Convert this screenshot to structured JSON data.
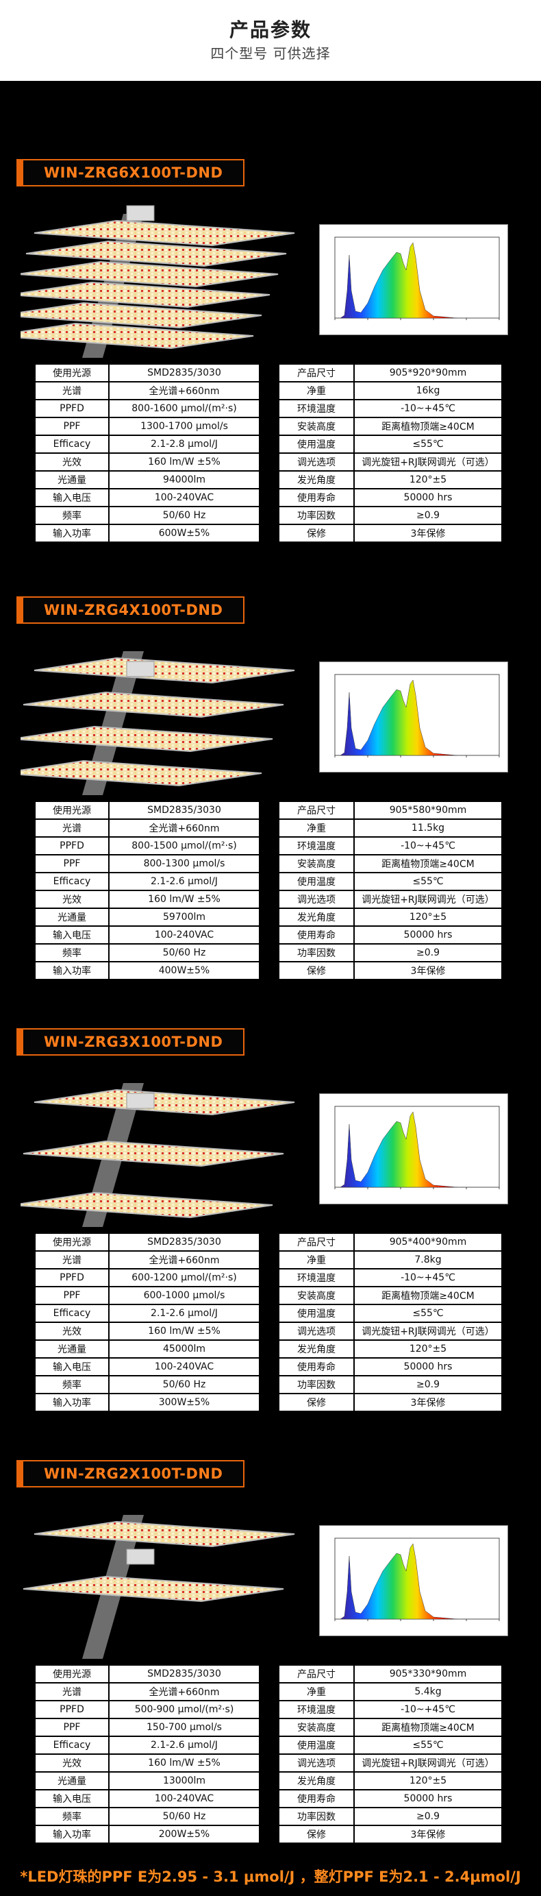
{
  "header": {
    "title": "产品参数",
    "subtitle": "四个型号 可供选择"
  },
  "models": [
    {
      "name": "WIN-ZRG6X100T-DND",
      "bars": 6,
      "left": [
        {
          "k": "使用光源",
          "v": "SMD2835/3030"
        },
        {
          "k": "光谱",
          "v": "全光谱+660nm"
        },
        {
          "k": "PPFD",
          "v": "800-1600 μmol/(m²·s)"
        },
        {
          "k": "PPF",
          "v": "1300-1700 μmol/s"
        },
        {
          "k": "Efficacy",
          "v": "2.1-2.8 μmol/J"
        },
        {
          "k": "光效",
          "v": "160 lm/W ±5%"
        },
        {
          "k": "光通量",
          "v": "94000lm"
        },
        {
          "k": "输入电压",
          "v": "100-240VAC"
        },
        {
          "k": "频率",
          "v": "50/60 Hz"
        },
        {
          "k": "输入功率",
          "v": "600W±5%"
        }
      ],
      "right": [
        {
          "k": "产品尺寸",
          "v": "905*920*90mm"
        },
        {
          "k": "净重",
          "v": "16kg"
        },
        {
          "k": "环境温度",
          "v": "-10~+45℃"
        },
        {
          "k": "安装高度",
          "v": "距离植物顶端≥40CM"
        },
        {
          "k": "使用温度",
          "v": "≤55℃"
        },
        {
          "k": "调光选项",
          "v": "调光旋钮+RJ联网调光（可选）"
        },
        {
          "k": "发光角度",
          "v": "120°±5"
        },
        {
          "k": "使用寿命",
          "v": "50000 hrs"
        },
        {
          "k": "功率因数",
          "v": "≥0.9"
        },
        {
          "k": "保修",
          "v": "3年保修"
        }
      ]
    },
    {
      "name": "WIN-ZRG4X100T-DND",
      "bars": 4,
      "left": [
        {
          "k": "使用光源",
          "v": "SMD2835/3030"
        },
        {
          "k": "光谱",
          "v": "全光谱+660nm"
        },
        {
          "k": "PPFD",
          "v": "800-1500 μmol/(m²·s)"
        },
        {
          "k": "PPF",
          "v": "800-1300 μmol/s"
        },
        {
          "k": "Efficacy",
          "v": "2.1-2.6 μmol/J"
        },
        {
          "k": "光效",
          "v": "160 lm/W ±5%"
        },
        {
          "k": "光通量",
          "v": "59700lm"
        },
        {
          "k": "输入电压",
          "v": "100-240VAC"
        },
        {
          "k": "频率",
          "v": "50/60 Hz"
        },
        {
          "k": "输入功率",
          "v": "400W±5%"
        }
      ],
      "right": [
        {
          "k": "产品尺寸",
          "v": "905*580*90mm"
        },
        {
          "k": "净重",
          "v": "11.5kg"
        },
        {
          "k": "环境温度",
          "v": "-10~+45℃"
        },
        {
          "k": "安装高度",
          "v": "距离植物顶端≥40CM"
        },
        {
          "k": "使用温度",
          "v": "≤55℃"
        },
        {
          "k": "调光选项",
          "v": "调光旋钮+RJ联网调光（可选）"
        },
        {
          "k": "发光角度",
          "v": "120°±5"
        },
        {
          "k": "使用寿命",
          "v": "50000 hrs"
        },
        {
          "k": "功率因数",
          "v": "≥0.9"
        },
        {
          "k": "保修",
          "v": "3年保修"
        }
      ]
    },
    {
      "name": "WIN-ZRG3X100T-DND",
      "bars": 3,
      "left": [
        {
          "k": "使用光源",
          "v": "SMD2835/3030"
        },
        {
          "k": "光谱",
          "v": "全光谱+660nm"
        },
        {
          "k": "PPFD",
          "v": "600-1200 μmol/(m²·s)"
        },
        {
          "k": "PPF",
          "v": "600-1000 μmol/s"
        },
        {
          "k": "Efficacy",
          "v": "2.1-2.6 μmol/J"
        },
        {
          "k": "光效",
          "v": "160 lm/W ±5%"
        },
        {
          "k": "光通量",
          "v": "45000lm"
        },
        {
          "k": "输入电压",
          "v": "100-240VAC"
        },
        {
          "k": "频率",
          "v": "50/60 Hz"
        },
        {
          "k": "输入功率",
          "v": "300W±5%"
        }
      ],
      "right": [
        {
          "k": "产品尺寸",
          "v": "905*400*90mm"
        },
        {
          "k": "净重",
          "v": "7.8kg"
        },
        {
          "k": "环境温度",
          "v": "-10~+45℃"
        },
        {
          "k": "安装高度",
          "v": "距离植物顶端≥40CM"
        },
        {
          "k": "使用温度",
          "v": "≤55℃"
        },
        {
          "k": "调光选项",
          "v": "调光旋钮+RJ联网调光（可选）"
        },
        {
          "k": "发光角度",
          "v": "120°±5"
        },
        {
          "k": "使用寿命",
          "v": "50000 hrs"
        },
        {
          "k": "功率因数",
          "v": "≥0.9"
        },
        {
          "k": "保修",
          "v": "3年保修"
        }
      ]
    },
    {
      "name": "WIN-ZRG2X100T-DND",
      "bars": 2,
      "left": [
        {
          "k": "使用光源",
          "v": "SMD2835/3030"
        },
        {
          "k": "光谱",
          "v": "全光谱+660nm"
        },
        {
          "k": "PPFD",
          "v": "500-900 μmol/(m²·s)"
        },
        {
          "k": "PPF",
          "v": "150-700 μmol/s"
        },
        {
          "k": "Efficacy",
          "v": "2.1-2.6 μmol/J"
        },
        {
          "k": "光效",
          "v": "160 lm/W ±5%"
        },
        {
          "k": "光通量",
          "v": "13000lm"
        },
        {
          "k": "输入电压",
          "v": "100-240VAC"
        },
        {
          "k": "频率",
          "v": "50/60 Hz"
        },
        {
          "k": "输入功率",
          "v": "200W±5%"
        }
      ],
      "right": [
        {
          "k": "产品尺寸",
          "v": "905*330*90mm"
        },
        {
          "k": "净重",
          "v": "5.4kg"
        },
        {
          "k": "环境温度",
          "v": "-10~+45℃"
        },
        {
          "k": "安装高度",
          "v": "距离植物顶端≥40CM"
        },
        {
          "k": "使用温度",
          "v": "≤55℃"
        },
        {
          "k": "调光选项",
          "v": "调光旋钮+RJ联网调光（可选）"
        },
        {
          "k": "发光角度",
          "v": "120°±5"
        },
        {
          "k": "使用寿命",
          "v": "50000 hrs"
        },
        {
          "k": "功率因数",
          "v": "≥0.9"
        },
        {
          "k": "保修",
          "v": "3年保修"
        }
      ]
    }
  ],
  "footer": "*LED灯珠的PPF E为2.95 - 3.1 μmol/J ，整灯PPF E为2.1 - 2.4μmol/J",
  "colors": {
    "accent": "#e8650c",
    "accent_text": "#ff7d1a",
    "background": "#000000",
    "table_bg": "#ffffff"
  }
}
